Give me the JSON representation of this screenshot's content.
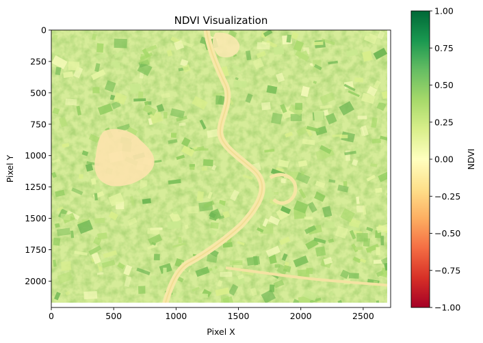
{
  "chart_data": {
    "type": "heatmap",
    "title": "NDVI Visualization",
    "xlabel": "Pixel X",
    "ylabel": "Pixel Y",
    "xlim": [
      0,
      2720
    ],
    "ylim": [
      2210,
      0
    ],
    "x_ticks": [
      0,
      500,
      1000,
      1500,
      2000,
      2500
    ],
    "y_ticks": [
      0,
      250,
      500,
      750,
      1000,
      1250,
      1500,
      1750,
      2000
    ],
    "grid": false,
    "colormap": "RdYlGn",
    "colorbar": {
      "label": "NDVI",
      "min": -1.0,
      "max": 1.0,
      "ticks": [
        "1.00",
        "0.75",
        "0.50",
        "0.25",
        "0.00",
        "−0.25",
        "−0.50",
        "−0.75",
        "−1.00"
      ]
    },
    "colors": {
      "very_low": "#a50026",
      "low": "#f46d43",
      "neutral": "#ffffbf",
      "moderate": "#a6d96a",
      "high": "#006837",
      "river": "#fde9a6",
      "bare_soil": "#fde0a8"
    }
  }
}
